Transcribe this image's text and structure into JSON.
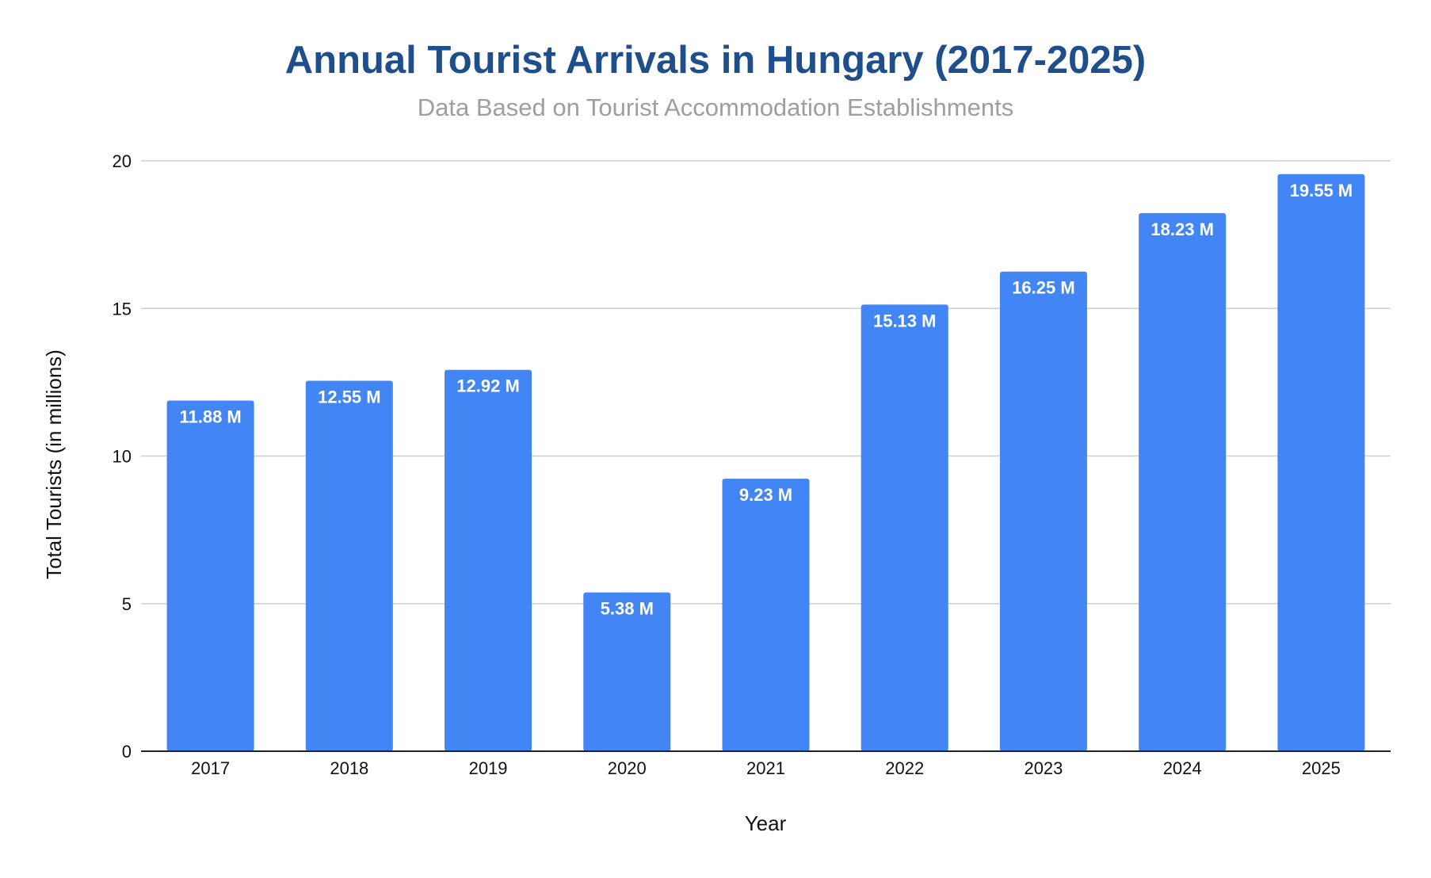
{
  "chart_data": {
    "type": "bar",
    "title": "Annual Tourist Arrivals in Hungary (2017-2025)",
    "subtitle": "Data Based on Tourist Accommodation Establishments",
    "xlabel": "Year",
    "ylabel": "Total Tourists (in millions)",
    "categories": [
      "2017",
      "2018",
      "2019",
      "2020",
      "2021",
      "2022",
      "2023",
      "2024",
      "2025"
    ],
    "values": [
      11.88,
      12.55,
      12.92,
      5.38,
      9.23,
      15.13,
      16.25,
      18.23,
      19.55
    ],
    "data_labels": [
      "11.88 M",
      "12.55 M",
      "12.92 M",
      "5.38 M",
      "9.23 M",
      "15.13 M",
      "16.25 M",
      "18.23 M",
      "19.55 M"
    ],
    "ylim": [
      0,
      20
    ],
    "yticks": [
      0,
      5,
      10,
      15,
      20
    ],
    "grid": true,
    "legend": "none",
    "colors": {
      "bar": "#4285f4",
      "title": "#1f4e8c",
      "subtitle": "#9e9e9e"
    }
  }
}
